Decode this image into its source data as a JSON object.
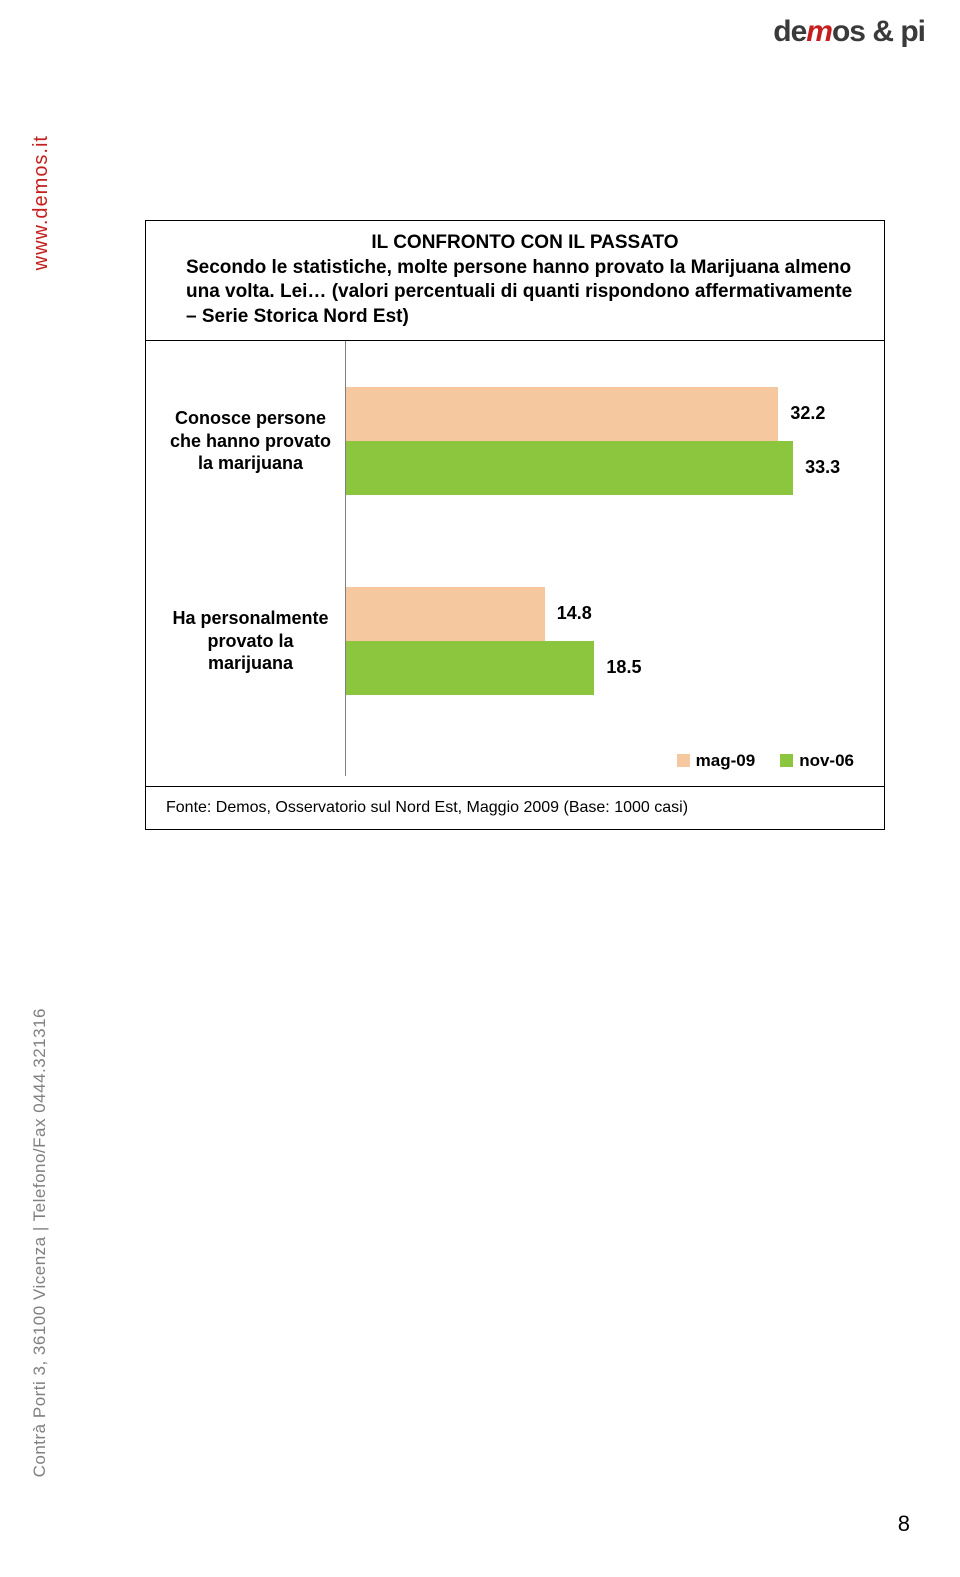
{
  "logo": {
    "text_prefix": "de",
    "text_mid": "m",
    "text_suffix": "os & pi"
  },
  "sidebar": {
    "url": "www.demos.it",
    "contact": "Contrà Porti 3, 36100 Vicenza | Telefono/Fax 0444.321316"
  },
  "chart": {
    "title": "IL CONFRONTO CON IL PASSATO",
    "subtitle": "Secondo le statistiche, molte persone hanno provato la Marijuana almeno una volta. Lei… (valori percentuali di quanti rispondono affermativamente – Serie Storica Nord Est)",
    "type": "grouped-horizontal-bar",
    "xmax": 35,
    "categories": [
      {
        "label": "Conosce persone che hanno provato la marijuana",
        "series": [
          {
            "key": "mag-09",
            "value": 32.2,
            "display": "32.2"
          },
          {
            "key": "nov-06",
            "value": 33.3,
            "display": "33.3"
          }
        ]
      },
      {
        "label": "Ha personalmente provato la marijuana",
        "series": [
          {
            "key": "mag-09",
            "value": 14.8,
            "display": "14.8"
          },
          {
            "key": "nov-06",
            "value": 18.5,
            "display": "18.5"
          }
        ]
      }
    ],
    "series_colors": {
      "mag-09": "#f6c89f",
      "nov-06": "#8cc63f"
    },
    "legend": [
      {
        "key": "mag-09",
        "label": "mag-09",
        "color": "#f6c89f"
      },
      {
        "key": "nov-06",
        "label": "nov-06",
        "color": "#8cc63f"
      }
    ],
    "footer": "Fonte: Demos, Osservatorio sul Nord Est, Maggio 2009 (Base: 1000 casi)"
  },
  "page_number": "8"
}
